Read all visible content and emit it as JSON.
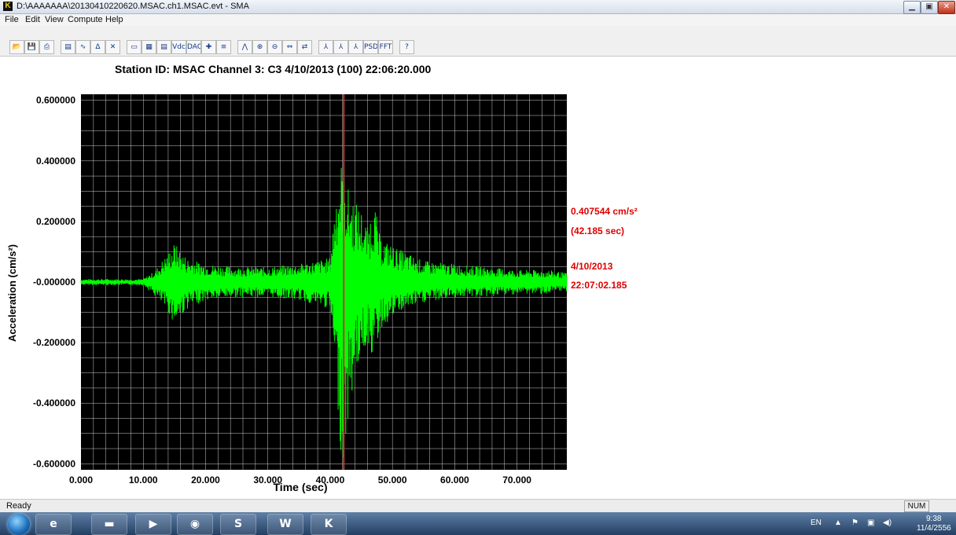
{
  "window": {
    "app_icon_glyph": "K",
    "title": "D:\\AAAAAAA\\20130410220620.MSAC.ch1.MSAC.evt - SMA",
    "min_glyph": "▁",
    "max_glyph": "▣",
    "close_glyph": "✕"
  },
  "menu": {
    "items": [
      "File",
      "Edit",
      "View",
      "Compute",
      "Help"
    ]
  },
  "toolbar": {
    "buttons": [
      {
        "icon": "open-icon",
        "glyph": "📂"
      },
      {
        "icon": "save-icon",
        "glyph": "💾"
      },
      {
        "icon": "print-icon",
        "glyph": "⎙"
      },
      {
        "icon": "properties-icon",
        "glyph": "▤"
      },
      {
        "icon": "waveform-icon",
        "glyph": "∿"
      },
      {
        "icon": "amplitude-icon",
        "glyph": "Δ"
      },
      {
        "icon": "tools-icon",
        "glyph": "✕"
      },
      {
        "icon": "display-icon",
        "glyph": "▭"
      },
      {
        "icon": "grid-icon",
        "glyph": "▦"
      },
      {
        "icon": "table-icon",
        "glyph": "▤"
      },
      {
        "icon": "vdc-icon",
        "glyph": "Vdc"
      },
      {
        "icon": "dac-icon",
        "glyph": "DAC"
      },
      {
        "icon": "cursor-icon",
        "glyph": "✚"
      },
      {
        "icon": "lines-icon",
        "glyph": "≡"
      },
      {
        "icon": "peak-icon",
        "glyph": "⋀"
      },
      {
        "icon": "zoom-in-icon",
        "glyph": "⊕"
      },
      {
        "icon": "zoom-out-icon",
        "glyph": "⊖"
      },
      {
        "icon": "fit-icon",
        "glyph": "⇔"
      },
      {
        "icon": "shift-icon",
        "glyph": "⇄"
      },
      {
        "icon": "filter-icon",
        "glyph": "⅄"
      },
      {
        "icon": "filter2-icon",
        "glyph": "⅄"
      },
      {
        "icon": "filter3-icon",
        "glyph": "⅄"
      },
      {
        "icon": "psd-icon",
        "glyph": "PSD"
      },
      {
        "icon": "fft-icon",
        "glyph": "FFT"
      },
      {
        "icon": "help-icon",
        "glyph": "?"
      }
    ]
  },
  "chart": {
    "title": "Station ID: MSAC   Channel 3: C3   4/10/2013 (100) 22:06:20.000",
    "ylabel": "Acceleration (cm/s²)",
    "xlabel": "Time (sec)",
    "y_ticks": [
      "0.600000",
      "0.400000",
      "0.200000",
      "-0.000000",
      "-0.200000",
      "-0.400000",
      "-0.600000"
    ],
    "x_ticks": [
      "0.000",
      "10.000",
      "20.000",
      "30.000",
      "40.000",
      "50.000",
      "60.000",
      "70.000"
    ],
    "cursor_readout": {
      "value": "0.407544 cm/s²",
      "time": "(42.185 sec)",
      "date": "4/10/2013",
      "clock": "22:07:02.185"
    },
    "colors": {
      "background": "#000000",
      "grid": "#ffffff",
      "trace": "#00ff00",
      "cursor": "#c0392b",
      "readout": "#e00000"
    }
  },
  "chart_data": {
    "type": "line",
    "title": "Station ID: MSAC   Channel 3: C3   4/10/2013 (100) 22:06:20.000",
    "xlabel": "Time (sec)",
    "ylabel": "Acceleration (cm/s²)",
    "xlim": [
      0,
      78
    ],
    "ylim": [
      -0.62,
      0.62
    ],
    "x_ticks": [
      0,
      10,
      20,
      30,
      40,
      50,
      60,
      70
    ],
    "y_ticks": [
      0.6,
      0.4,
      0.2,
      0.0,
      -0.2,
      -0.4,
      -0.6
    ],
    "grid": true,
    "cursor": {
      "x": 42.185,
      "y": 0.407544
    },
    "envelope": {
      "x": [
        0,
        5,
        10,
        12,
        14,
        15,
        17,
        20,
        25,
        30,
        35,
        40,
        41,
        42,
        43,
        44,
        45,
        46,
        47,
        48,
        50,
        52,
        55,
        60,
        65,
        70,
        75,
        78
      ],
      "upper": [
        0.01,
        0.01,
        0.01,
        0.04,
        0.1,
        0.13,
        0.08,
        0.06,
        0.05,
        0.05,
        0.06,
        0.08,
        0.32,
        0.42,
        0.3,
        0.27,
        0.24,
        0.18,
        0.28,
        0.15,
        0.12,
        0.1,
        0.07,
        0.06,
        0.05,
        0.04,
        0.04,
        0.03
      ],
      "lower": [
        -0.01,
        -0.01,
        -0.01,
        -0.05,
        -0.1,
        -0.14,
        -0.09,
        -0.06,
        -0.05,
        -0.05,
        -0.06,
        -0.09,
        -0.35,
        -0.64,
        -0.45,
        -0.3,
        -0.25,
        -0.2,
        -0.26,
        -0.16,
        -0.12,
        -0.09,
        -0.07,
        -0.05,
        -0.05,
        -0.04,
        -0.04,
        -0.03
      ]
    }
  },
  "status": {
    "text": "Ready",
    "num": "NUM"
  },
  "taskbar": {
    "apps": [
      {
        "name": "ie-icon",
        "glyph": "e"
      },
      {
        "name": "explorer-icon",
        "glyph": "▬"
      },
      {
        "name": "media-player-icon",
        "glyph": "▶"
      },
      {
        "name": "firefox-icon",
        "glyph": "◉"
      },
      {
        "name": "skype-icon",
        "glyph": "S"
      },
      {
        "name": "word-icon",
        "glyph": "W"
      },
      {
        "name": "sma-app-icon",
        "glyph": "K"
      }
    ],
    "tray": {
      "lang": "EN",
      "arrow": "▲",
      "flag": "⚑",
      "network": "▣",
      "volume": "◀)"
    },
    "time": "9:38",
    "date": "11/4/2556"
  }
}
